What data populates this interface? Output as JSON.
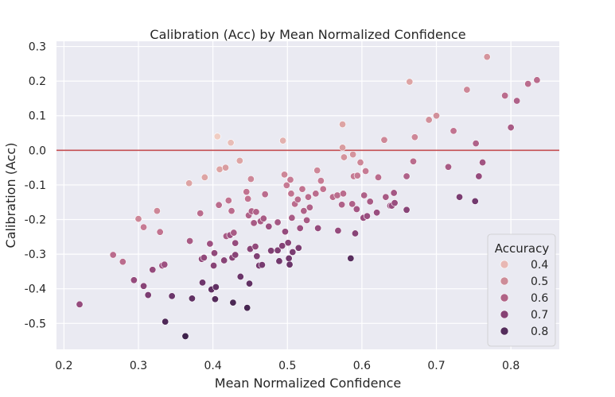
{
  "chart_data": {
    "type": "scatter",
    "title": "Calibration (Acc) by Mean Normalized Confidence",
    "xlabel": "Mean Normalized Confidence",
    "ylabel": "Calibration (Acc)",
    "xlim": [
      0.19,
      0.865
    ],
    "ylim": [
      -0.575,
      0.315
    ],
    "x_ticks": [
      "0.2",
      "0.3",
      "0.4",
      "0.5",
      "0.6",
      "0.7",
      "0.8"
    ],
    "y_ticks": [
      "0.3",
      "0.2",
      "0.1",
      "0.0",
      "-0.1",
      "-0.2",
      "-0.3",
      "-0.4",
      "-0.5"
    ],
    "x_tick_values": [
      0.2,
      0.3,
      0.4,
      0.5,
      0.6,
      0.7,
      0.8
    ],
    "y_tick_values": [
      0.3,
      0.2,
      0.1,
      0.0,
      -0.1,
      -0.2,
      -0.3,
      -0.4,
      -0.5
    ],
    "reference_line": {
      "y": 0.0,
      "color": "#c44e52"
    },
    "grid": true,
    "background": "#eaeaf2",
    "legend": {
      "title": "Accuracy",
      "placement": "lower-right",
      "entries": [
        {
          "label": "0.4",
          "color": "#e8b8b4"
        },
        {
          "label": "0.5",
          "color": "#cd8c98"
        },
        {
          "label": "0.6",
          "color": "#b06386"
        },
        {
          "label": "0.7",
          "color": "#874274"
        },
        {
          "label": "0.8",
          "color": "#542d5c"
        }
      ]
    },
    "color_scale": {
      "min": 0.33,
      "max": 0.87,
      "stops": [
        "#f0cdc3",
        "#dba1a2",
        "#c27491",
        "#9c4f80",
        "#6d366c",
        "#3e224c"
      ]
    },
    "points": [
      {
        "x": 0.221,
        "y": -0.445,
        "acc": 0.67
      },
      {
        "x": 0.266,
        "y": -0.302,
        "acc": 0.57
      },
      {
        "x": 0.279,
        "y": -0.322,
        "acc": 0.57
      },
      {
        "x": 0.294,
        "y": -0.375,
        "acc": 0.67
      },
      {
        "x": 0.3,
        "y": -0.198,
        "acc": 0.5
      },
      {
        "x": 0.307,
        "y": -0.222,
        "acc": 0.53
      },
      {
        "x": 0.307,
        "y": -0.392,
        "acc": 0.7
      },
      {
        "x": 0.313,
        "y": -0.418,
        "acc": 0.73
      },
      {
        "x": 0.319,
        "y": -0.345,
        "acc": 0.67
      },
      {
        "x": 0.325,
        "y": -0.175,
        "acc": 0.5
      },
      {
        "x": 0.329,
        "y": -0.236,
        "acc": 0.55
      },
      {
        "x": 0.332,
        "y": -0.333,
        "acc": 0.65
      },
      {
        "x": 0.335,
        "y": -0.33,
        "acc": 0.65
      },
      {
        "x": 0.336,
        "y": -0.495,
        "acc": 0.83
      },
      {
        "x": 0.345,
        "y": -0.421,
        "acc": 0.77
      },
      {
        "x": 0.363,
        "y": -0.537,
        "acc": 0.87
      },
      {
        "x": 0.368,
        "y": -0.095,
        "acc": 0.43
      },
      {
        "x": 0.369,
        "y": -0.262,
        "acc": 0.62
      },
      {
        "x": 0.372,
        "y": -0.428,
        "acc": 0.79
      },
      {
        "x": 0.383,
        "y": -0.182,
        "acc": 0.57
      },
      {
        "x": 0.385,
        "y": -0.314,
        "acc": 0.68
      },
      {
        "x": 0.386,
        "y": -0.382,
        "acc": 0.76
      },
      {
        "x": 0.388,
        "y": -0.31,
        "acc": 0.68
      },
      {
        "x": 0.389,
        "y": -0.078,
        "acc": 0.43
      },
      {
        "x": 0.396,
        "y": -0.27,
        "acc": 0.65
      },
      {
        "x": 0.398,
        "y": -0.402,
        "acc": 0.79
      },
      {
        "x": 0.401,
        "y": -0.333,
        "acc": 0.7
      },
      {
        "x": 0.402,
        "y": -0.297,
        "acc": 0.68
      },
      {
        "x": 0.403,
        "y": -0.43,
        "acc": 0.82
      },
      {
        "x": 0.404,
        "y": -0.395,
        "acc": 0.79
      },
      {
        "x": 0.406,
        "y": 0.04,
        "acc": 0.33
      },
      {
        "x": 0.408,
        "y": -0.158,
        "acc": 0.57
      },
      {
        "x": 0.409,
        "y": -0.055,
        "acc": 0.43
      },
      {
        "x": 0.415,
        "y": -0.318,
        "acc": 0.7
      },
      {
        "x": 0.417,
        "y": -0.05,
        "acc": 0.45
      },
      {
        "x": 0.418,
        "y": -0.248,
        "acc": 0.62
      },
      {
        "x": 0.421,
        "y": -0.145,
        "acc": 0.55
      },
      {
        "x": 0.423,
        "y": -0.245,
        "acc": 0.65
      },
      {
        "x": 0.424,
        "y": 0.022,
        "acc": 0.37
      },
      {
        "x": 0.425,
        "y": -0.175,
        "acc": 0.57
      },
      {
        "x": 0.426,
        "y": -0.31,
        "acc": 0.7
      },
      {
        "x": 0.427,
        "y": -0.44,
        "acc": 0.84
      },
      {
        "x": 0.428,
        "y": -0.238,
        "acc": 0.62
      },
      {
        "x": 0.43,
        "y": -0.268,
        "acc": 0.67
      },
      {
        "x": 0.43,
        "y": -0.302,
        "acc": 0.7
      },
      {
        "x": 0.436,
        "y": -0.03,
        "acc": 0.43
      },
      {
        "x": 0.437,
        "y": -0.365,
        "acc": 0.77
      },
      {
        "x": 0.445,
        "y": -0.12,
        "acc": 0.55
      },
      {
        "x": 0.446,
        "y": -0.455,
        "acc": 0.85
      },
      {
        "x": 0.447,
        "y": -0.14,
        "acc": 0.55
      },
      {
        "x": 0.448,
        "y": -0.188,
        "acc": 0.6
      },
      {
        "x": 0.449,
        "y": -0.385,
        "acc": 0.79
      },
      {
        "x": 0.45,
        "y": -0.285,
        "acc": 0.7
      },
      {
        "x": 0.451,
        "y": -0.083,
        "acc": 0.5
      },
      {
        "x": 0.452,
        "y": -0.176,
        "acc": 0.6
      },
      {
        "x": 0.455,
        "y": -0.21,
        "acc": 0.62
      },
      {
        "x": 0.457,
        "y": -0.278,
        "acc": 0.68
      },
      {
        "x": 0.458,
        "y": -0.178,
        "acc": 0.6
      },
      {
        "x": 0.459,
        "y": -0.306,
        "acc": 0.72
      },
      {
        "x": 0.462,
        "y": -0.333,
        "acc": 0.74
      },
      {
        "x": 0.464,
        "y": -0.205,
        "acc": 0.62
      },
      {
        "x": 0.466,
        "y": -0.331,
        "acc": 0.74
      },
      {
        "x": 0.468,
        "y": -0.197,
        "acc": 0.62
      },
      {
        "x": 0.47,
        "y": -0.127,
        "acc": 0.57
      },
      {
        "x": 0.475,
        "y": -0.22,
        "acc": 0.65
      },
      {
        "x": 0.478,
        "y": -0.29,
        "acc": 0.72
      },
      {
        "x": 0.487,
        "y": -0.289,
        "acc": 0.72
      },
      {
        "x": 0.487,
        "y": -0.208,
        "acc": 0.63
      },
      {
        "x": 0.489,
        "y": -0.32,
        "acc": 0.75
      },
      {
        "x": 0.493,
        "y": -0.276,
        "acc": 0.71
      },
      {
        "x": 0.494,
        "y": 0.028,
        "acc": 0.4
      },
      {
        "x": 0.496,
        "y": -0.07,
        "acc": 0.5
      },
      {
        "x": 0.497,
        "y": -0.235,
        "acc": 0.67
      },
      {
        "x": 0.499,
        "y": -0.101,
        "acc": 0.53
      },
      {
        "x": 0.501,
        "y": -0.267,
        "acc": 0.7
      },
      {
        "x": 0.502,
        "y": -0.312,
        "acc": 0.75
      },
      {
        "x": 0.503,
        "y": -0.33,
        "acc": 0.77
      },
      {
        "x": 0.504,
        "y": -0.085,
        "acc": 0.53
      },
      {
        "x": 0.505,
        "y": -0.125,
        "acc": 0.55
      },
      {
        "x": 0.506,
        "y": -0.195,
        "acc": 0.62
      },
      {
        "x": 0.507,
        "y": -0.294,
        "acc": 0.73
      },
      {
        "x": 0.51,
        "y": -0.155,
        "acc": 0.57
      },
      {
        "x": 0.514,
        "y": -0.142,
        "acc": 0.57
      },
      {
        "x": 0.515,
        "y": -0.282,
        "acc": 0.73
      },
      {
        "x": 0.517,
        "y": -0.225,
        "acc": 0.65
      },
      {
        "x": 0.52,
        "y": -0.112,
        "acc": 0.55
      },
      {
        "x": 0.522,
        "y": -0.175,
        "acc": 0.6
      },
      {
        "x": 0.526,
        "y": -0.202,
        "acc": 0.62
      },
      {
        "x": 0.528,
        "y": -0.135,
        "acc": 0.57
      },
      {
        "x": 0.53,
        "y": -0.165,
        "acc": 0.6
      },
      {
        "x": 0.538,
        "y": -0.125,
        "acc": 0.57
      },
      {
        "x": 0.54,
        "y": -0.058,
        "acc": 0.5
      },
      {
        "x": 0.541,
        "y": -0.225,
        "acc": 0.67
      },
      {
        "x": 0.545,
        "y": -0.088,
        "acc": 0.53
      },
      {
        "x": 0.548,
        "y": -0.112,
        "acc": 0.55
      },
      {
        "x": 0.561,
        "y": -0.135,
        "acc": 0.57
      },
      {
        "x": 0.567,
        "y": -0.13,
        "acc": 0.57
      },
      {
        "x": 0.568,
        "y": -0.232,
        "acc": 0.67
      },
      {
        "x": 0.573,
        "y": -0.157,
        "acc": 0.6
      },
      {
        "x": 0.574,
        "y": 0.075,
        "acc": 0.43
      },
      {
        "x": 0.574,
        "y": 0.008,
        "acc": 0.45
      },
      {
        "x": 0.575,
        "y": -0.125,
        "acc": 0.57
      },
      {
        "x": 0.576,
        "y": -0.02,
        "acc": 0.47
      },
      {
        "x": 0.585,
        "y": -0.312,
        "acc": 0.81
      },
      {
        "x": 0.587,
        "y": -0.155,
        "acc": 0.6
      },
      {
        "x": 0.588,
        "y": -0.012,
        "acc": 0.47
      },
      {
        "x": 0.589,
        "y": -0.075,
        "acc": 0.53
      },
      {
        "x": 0.591,
        "y": -0.24,
        "acc": 0.7
      },
      {
        "x": 0.593,
        "y": -0.17,
        "acc": 0.63
      },
      {
        "x": 0.594,
        "y": -0.073,
        "acc": 0.53
      },
      {
        "x": 0.598,
        "y": -0.035,
        "acc": 0.5
      },
      {
        "x": 0.602,
        "y": -0.195,
        "acc": 0.66
      },
      {
        "x": 0.603,
        "y": -0.13,
        "acc": 0.6
      },
      {
        "x": 0.605,
        "y": -0.06,
        "acc": 0.53
      },
      {
        "x": 0.607,
        "y": -0.19,
        "acc": 0.66
      },
      {
        "x": 0.611,
        "y": -0.148,
        "acc": 0.62
      },
      {
        "x": 0.62,
        "y": -0.18,
        "acc": 0.66
      },
      {
        "x": 0.622,
        "y": -0.078,
        "acc": 0.57
      },
      {
        "x": 0.63,
        "y": 0.03,
        "acc": 0.5
      },
      {
        "x": 0.632,
        "y": -0.135,
        "acc": 0.62
      },
      {
        "x": 0.638,
        "y": -0.16,
        "acc": 0.66
      },
      {
        "x": 0.64,
        "y": -0.16,
        "acc": 0.66
      },
      {
        "x": 0.643,
        "y": -0.123,
        "acc": 0.63
      },
      {
        "x": 0.644,
        "y": -0.152,
        "acc": 0.66
      },
      {
        "x": 0.66,
        "y": -0.075,
        "acc": 0.6
      },
      {
        "x": 0.66,
        "y": -0.172,
        "acc": 0.7
      },
      {
        "x": 0.664,
        "y": 0.198,
        "acc": 0.43
      },
      {
        "x": 0.669,
        "y": -0.032,
        "acc": 0.57
      },
      {
        "x": 0.671,
        "y": 0.038,
        "acc": 0.5
      },
      {
        "x": 0.69,
        "y": 0.088,
        "acc": 0.48
      },
      {
        "x": 0.7,
        "y": 0.1,
        "acc": 0.48
      },
      {
        "x": 0.716,
        "y": -0.048,
        "acc": 0.62
      },
      {
        "x": 0.723,
        "y": 0.056,
        "acc": 0.55
      },
      {
        "x": 0.731,
        "y": -0.135,
        "acc": 0.73
      },
      {
        "x": 0.741,
        "y": 0.175,
        "acc": 0.5
      },
      {
        "x": 0.752,
        "y": -0.147,
        "acc": 0.75
      },
      {
        "x": 0.753,
        "y": 0.02,
        "acc": 0.6
      },
      {
        "x": 0.757,
        "y": -0.075,
        "acc": 0.67
      },
      {
        "x": 0.762,
        "y": -0.035,
        "acc": 0.64
      },
      {
        "x": 0.768,
        "y": 0.27,
        "acc": 0.47
      },
      {
        "x": 0.792,
        "y": 0.158,
        "acc": 0.57
      },
      {
        "x": 0.8,
        "y": 0.066,
        "acc": 0.62
      },
      {
        "x": 0.808,
        "y": 0.143,
        "acc": 0.6
      },
      {
        "x": 0.823,
        "y": 0.192,
        "acc": 0.57
      },
      {
        "x": 0.835,
        "y": 0.203,
        "acc": 0.57
      }
    ]
  }
}
